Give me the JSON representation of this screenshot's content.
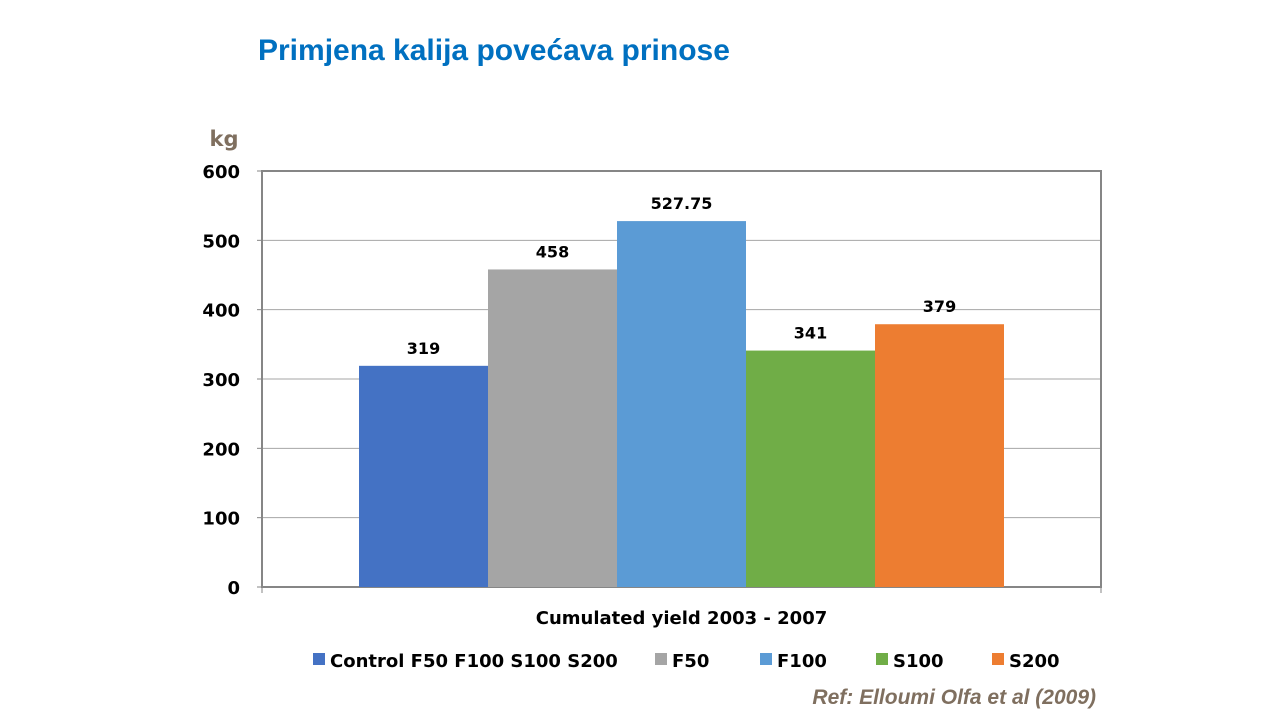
{
  "title": "Primjena kalija povećava prinose",
  "reference": "Ref: Elloumi Olfa et al (2009)",
  "chart_data": {
    "type": "bar",
    "categories": [
      "Cumulated yield 2003 - 2007"
    ],
    "series": [
      {
        "name": "Control F50 F100 S100 S200",
        "values": [
          319
        ],
        "label": "319",
        "color": "#4472c4"
      },
      {
        "name": "F50",
        "values": [
          458
        ],
        "label": "458",
        "color": "#a5a5a5"
      },
      {
        "name": "F100",
        "values": [
          527.75
        ],
        "label": "527.75",
        "color": "#5b9bd5"
      },
      {
        "name": "S100",
        "values": [
          341
        ],
        "label": "341",
        "color": "#70ad47"
      },
      {
        "name": "S200",
        "values": [
          379
        ],
        "label": "379",
        "color": "#ed7d31"
      }
    ],
    "xlabel": "Cumulated yield 2003 - 2007",
    "ylabel": "kg",
    "ylim": [
      0,
      600
    ],
    "yticks": [
      "0",
      "100",
      "200",
      "300",
      "400",
      "500",
      "600"
    ],
    "grid": true,
    "legend": "bottom"
  }
}
